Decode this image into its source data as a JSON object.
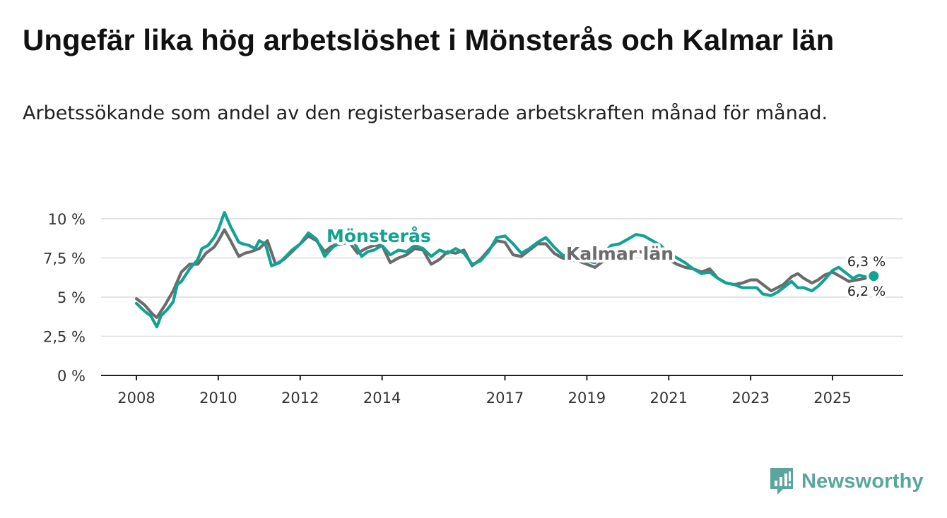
{
  "title": "Ungefär lika hög arbetslöshet i Mönsterås och Kalmar län",
  "subtitle": "Arbetssökande som andel av den registerbaserade arbetskraften månad för månad.",
  "brand": {
    "name": "Newsworthy",
    "color": "#5aa69d",
    "icon": "bar-chart-alert-icon"
  },
  "colors": {
    "monsteras": "#12a293",
    "kalmar": "#6b6b6b",
    "grid": "#dcdcdc",
    "axis": "#222222"
  },
  "chart_data": {
    "type": "line",
    "title": "Ungefär lika hög arbetslöshet i Mönsterås och Kalmar län",
    "xlabel": "",
    "ylabel": "",
    "xlim": [
      2008.0,
      2026.4
    ],
    "ylim": [
      0,
      10
    ],
    "yticks": [
      0,
      2.5,
      5,
      7.5,
      10
    ],
    "ytick_labels": [
      "0 %",
      "2,5 %",
      "5 %",
      "7,5 %",
      "10 %"
    ],
    "xticks": [
      2008,
      2010,
      2012,
      2014,
      2017,
      2019,
      2021,
      2023,
      2025
    ],
    "xtick_labels": [
      "2008",
      "2010",
      "2012",
      "2014",
      "2017",
      "2019",
      "2021",
      "2023",
      "2025"
    ],
    "grid": true,
    "series": [
      {
        "name": "Mönsterås",
        "key": "monsteras",
        "end_label": "6,3 %",
        "x": [
          2008.0,
          2008.2,
          2008.35,
          2008.5,
          2008.6,
          2008.75,
          2008.9,
          2009.0,
          2009.1,
          2009.3,
          2009.5,
          2009.6,
          2009.75,
          2009.9,
          2010.0,
          2010.15,
          2010.3,
          2010.5,
          2010.6,
          2010.75,
          2010.9,
          2011.0,
          2011.15,
          2011.3,
          2011.5,
          2011.65,
          2011.8,
          2012.0,
          2012.2,
          2012.4,
          2012.6,
          2012.8,
          2013.0,
          2013.15,
          2013.3,
          2013.5,
          2013.65,
          2013.8,
          2014.0,
          2014.2,
          2014.4,
          2014.6,
          2014.8,
          2015.0,
          2015.2,
          2015.4,
          2015.6,
          2015.8,
          2016.0,
          2016.2,
          2016.4,
          2016.6,
          2016.8,
          2017.0,
          2017.2,
          2017.4,
          2017.6,
          2017.8,
          2018.0,
          2018.2,
          2018.4,
          2018.6,
          2018.8,
          2019.0,
          2019.2,
          2019.4,
          2019.6,
          2019.8,
          2020.0,
          2020.2,
          2020.4,
          2020.6,
          2020.8,
          2021.0,
          2021.2,
          2021.4,
          2021.6,
          2021.8,
          2022.0,
          2022.2,
          2022.4,
          2022.6,
          2022.8,
          2023.0,
          2023.15,
          2023.3,
          2023.5,
          2023.65,
          2023.8,
          2024.0,
          2024.15,
          2024.3,
          2024.5,
          2024.65,
          2024.8,
          2025.0,
          2025.15,
          2025.3,
          2025.5,
          2025.65,
          2025.8
        ],
        "values": [
          4.6,
          4.1,
          3.8,
          3.1,
          3.8,
          4.2,
          4.7,
          5.8,
          6.0,
          6.8,
          7.4,
          8.1,
          8.3,
          8.8,
          9.3,
          10.4,
          9.5,
          8.5,
          8.4,
          8.3,
          8.1,
          8.6,
          8.4,
          7.0,
          7.2,
          7.6,
          8.0,
          8.4,
          9.1,
          8.7,
          7.6,
          8.2,
          8.5,
          8.8,
          8.6,
          7.6,
          7.9,
          8.0,
          8.3,
          7.7,
          8.0,
          7.9,
          8.3,
          8.1,
          7.6,
          8.0,
          7.8,
          8.1,
          7.8,
          7.1,
          7.3,
          7.9,
          8.8,
          8.9,
          8.4,
          7.8,
          8.1,
          8.5,
          8.8,
          8.2,
          7.7,
          7.5,
          7.4,
          7.3,
          7.2,
          7.8,
          8.3,
          8.4,
          8.7,
          9.0,
          8.9,
          8.6,
          8.3,
          7.8,
          7.5,
          7.2,
          6.8,
          6.5,
          6.6,
          6.2,
          5.9,
          5.8,
          5.6,
          5.6,
          5.6,
          5.2,
          5.1,
          5.3,
          5.6,
          6.0,
          5.6,
          5.6,
          5.4,
          5.7,
          6.1,
          6.7,
          6.9,
          6.6,
          6.2,
          6.4,
          6.3
        ]
      },
      {
        "name": "Kalmar län",
        "key": "kalmar",
        "end_label": "6,2 %",
        "x": [
          2008.0,
          2008.2,
          2008.4,
          2008.5,
          2008.7,
          2008.9,
          2009.1,
          2009.3,
          2009.5,
          2009.7,
          2009.9,
          2010.0,
          2010.15,
          2010.3,
          2010.5,
          2010.65,
          2010.8,
          2011.0,
          2011.2,
          2011.4,
          2011.6,
          2011.8,
          2012.0,
          2012.2,
          2012.4,
          2012.6,
          2012.8,
          2013.0,
          2013.2,
          2013.4,
          2013.6,
          2013.8,
          2014.0,
          2014.2,
          2014.4,
          2014.6,
          2014.8,
          2015.0,
          2015.2,
          2015.4,
          2015.6,
          2015.8,
          2016.0,
          2016.2,
          2016.4,
          2016.6,
          2016.8,
          2017.0,
          2017.2,
          2017.4,
          2017.6,
          2017.8,
          2018.0,
          2018.2,
          2018.4,
          2018.6,
          2018.8,
          2019.0,
          2019.2,
          2019.4,
          2019.6,
          2019.8,
          2020.0,
          2020.2,
          2020.4,
          2020.6,
          2020.8,
          2021.0,
          2021.2,
          2021.4,
          2021.6,
          2021.8,
          2022.0,
          2022.2,
          2022.4,
          2022.6,
          2022.8,
          2023.0,
          2023.15,
          2023.3,
          2023.5,
          2023.65,
          2023.8,
          2024.0,
          2024.15,
          2024.3,
          2024.5,
          2024.65,
          2024.8,
          2025.0,
          2025.2,
          2025.4,
          2025.6,
          2025.8
        ],
        "values": [
          4.9,
          4.5,
          3.9,
          3.7,
          4.5,
          5.4,
          6.6,
          7.1,
          7.1,
          7.8,
          8.2,
          8.6,
          9.3,
          8.6,
          7.6,
          7.8,
          7.9,
          8.1,
          8.6,
          7.1,
          7.4,
          7.9,
          8.4,
          8.9,
          8.6,
          7.9,
          8.3,
          8.4,
          8.5,
          7.8,
          8.1,
          8.3,
          8.3,
          7.2,
          7.5,
          7.7,
          8.1,
          8.0,
          7.1,
          7.4,
          7.9,
          7.8,
          8.0,
          7.0,
          7.4,
          8.0,
          8.6,
          8.5,
          7.7,
          7.6,
          8.0,
          8.4,
          8.4,
          7.8,
          7.5,
          7.4,
          7.3,
          7.1,
          6.9,
          7.3,
          7.7,
          7.8,
          8.0,
          8.0,
          7.8,
          7.5,
          7.4,
          7.4,
          7.1,
          6.9,
          6.8,
          6.6,
          6.8,
          6.2,
          5.9,
          5.8,
          5.9,
          6.1,
          6.1,
          5.8,
          5.4,
          5.6,
          5.8,
          6.3,
          6.5,
          6.2,
          5.9,
          6.1,
          6.4,
          6.6,
          6.3,
          6.0,
          6.1,
          6.2
        ]
      }
    ]
  }
}
